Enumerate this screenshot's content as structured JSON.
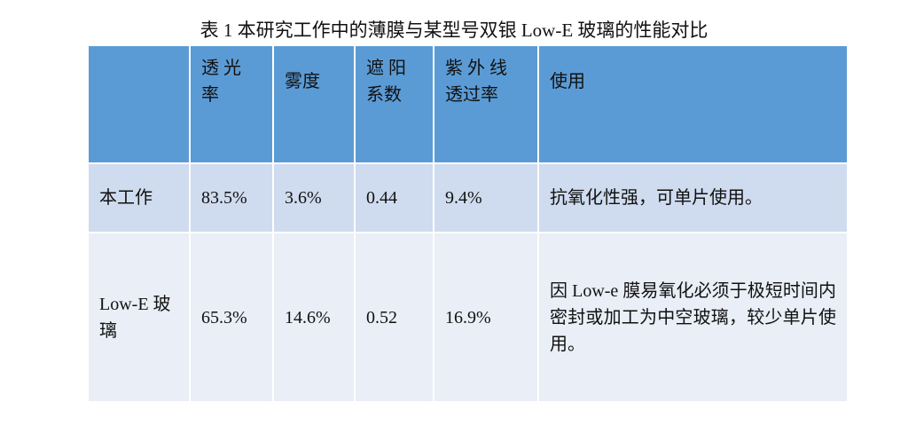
{
  "title": "表 1  本研究工作中的薄膜与某型号双银 Low-E 玻璃的性能对比",
  "table": {
    "header": [
      "透 光 率",
      "雾度",
      "遮 阳 系数",
      "紫 外 线 透过率",
      "使用"
    ],
    "rows": [
      [
        "本工作",
        "83.5%",
        "3.6%",
        "0.44",
        "9.4%",
        "抗氧化性强，可单片使用。"
      ],
      [
        "Low-E 玻璃",
        "65.3%",
        "14.6%",
        "0.52",
        "16.9%",
        "因 Low-e 膜易氧化必须于极短时间内密封或加工为中空玻璃，较少单片使用。"
      ]
    ]
  }
}
